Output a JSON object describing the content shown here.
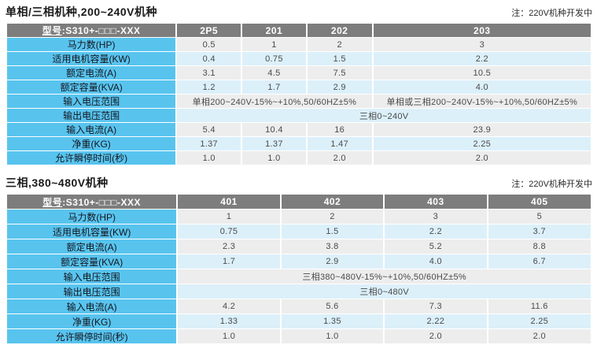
{
  "colors": {
    "header_gray": "#7d7d7d",
    "label_blue": "#58c4ee",
    "row_gray": "#ededed",
    "row_blue": "#dcf0fa"
  },
  "section1": {
    "title": "单相/三相机种,200~240V机种",
    "note": "注：220V机种开发中",
    "table": {
      "model_prefix": "型号",
      "model_suffix": ":S310+-□□□-XXX",
      "columns": [
        "2P5",
        "201",
        "202",
        "203"
      ],
      "rows": [
        {
          "label": "马力数(HP)",
          "cells": [
            {
              "text": "0.5"
            },
            {
              "text": "1"
            },
            {
              "text": "2"
            },
            {
              "text": "3"
            }
          ]
        },
        {
          "label": "适用电机容量(KW)",
          "cells": [
            {
              "text": "0.4"
            },
            {
              "text": "0.75"
            },
            {
              "text": "1.5"
            },
            {
              "text": "2.2"
            }
          ]
        },
        {
          "label": "额定电流(A)",
          "cells": [
            {
              "text": "3.1"
            },
            {
              "text": "4.5"
            },
            {
              "text": "7.5"
            },
            {
              "text": "10.5"
            }
          ]
        },
        {
          "label": "额定容量(KVA)",
          "cells": [
            {
              "text": "1.2"
            },
            {
              "text": "1.7"
            },
            {
              "text": "2.9"
            },
            {
              "text": "4.0"
            }
          ]
        },
        {
          "label": "输入电压范围",
          "cells": [
            {
              "text": "单相200~240V-15%~+10%,50/60HZ±5%",
              "colspan": 3
            },
            {
              "text": "单相或三相200~240V-15%~+10%,50/60HZ±5%",
              "colspan": 1
            }
          ]
        },
        {
          "label": "输出电压范围",
          "cells": [
            {
              "text": "三相0~240V",
              "colspan": 4
            }
          ]
        },
        {
          "label": "输入电流(A)",
          "cells": [
            {
              "text": "5.4"
            },
            {
              "text": "10.4"
            },
            {
              "text": "16"
            },
            {
              "text": "23.9"
            }
          ]
        },
        {
          "label": "净重(KG)",
          "cells": [
            {
              "text": "1.37"
            },
            {
              "text": "1.37"
            },
            {
              "text": "1.47"
            },
            {
              "text": "2.25"
            }
          ]
        },
        {
          "label": "允许瞬停时间(秒)",
          "cells": [
            {
              "text": "1.0"
            },
            {
              "text": "1.0"
            },
            {
              "text": "2.0"
            },
            {
              "text": "2.0"
            }
          ]
        }
      ]
    }
  },
  "section2": {
    "title": "三相,380~480V机种",
    "note": "注：220V机种开发中",
    "table": {
      "model_prefix": "型号",
      "model_suffix": ":S310+-□□□-XXX",
      "columns": [
        "401",
        "402",
        "403",
        "405"
      ],
      "rows": [
        {
          "label": "马力数(HP)",
          "cells": [
            {
              "text": "1"
            },
            {
              "text": "2"
            },
            {
              "text": "3"
            },
            {
              "text": "5"
            }
          ]
        },
        {
          "label": "适用电机容量(KW)",
          "cells": [
            {
              "text": "0.75"
            },
            {
              "text": "1.5"
            },
            {
              "text": "2.2"
            },
            {
              "text": "3.7"
            }
          ]
        },
        {
          "label": "额定电流(A)",
          "cells": [
            {
              "text": "2.3"
            },
            {
              "text": "3.8"
            },
            {
              "text": "5.2"
            },
            {
              "text": "8.8"
            }
          ]
        },
        {
          "label": "额定容量(KVA)",
          "cells": [
            {
              "text": "1.7"
            },
            {
              "text": "2.9"
            },
            {
              "text": "4.0"
            },
            {
              "text": "6.7"
            }
          ]
        },
        {
          "label": "输入电压范围",
          "cells": [
            {
              "text": "三相380~480V-15%~+10%,50/60HZ±5%",
              "colspan": 4
            }
          ]
        },
        {
          "label": "输出电压范围",
          "cells": [
            {
              "text": "三相0~480V",
              "colspan": 4
            }
          ]
        },
        {
          "label": "输入电流(A)",
          "cells": [
            {
              "text": "4.2"
            },
            {
              "text": "5.6"
            },
            {
              "text": "7.3"
            },
            {
              "text": "11.6"
            }
          ]
        },
        {
          "label": "净重(KG)",
          "cells": [
            {
              "text": "1.33"
            },
            {
              "text": "1.35"
            },
            {
              "text": "2.22"
            },
            {
              "text": "2.25"
            }
          ]
        },
        {
          "label": "允许瞬停时间(秒)",
          "cells": [
            {
              "text": "1.0"
            },
            {
              "text": "1.0"
            },
            {
              "text": "2.0"
            },
            {
              "text": "2.0"
            }
          ]
        }
      ]
    }
  }
}
